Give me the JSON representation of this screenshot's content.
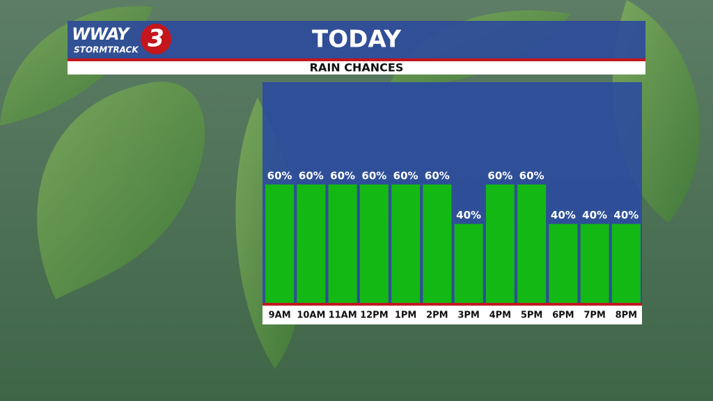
{
  "brand": {
    "name": "WWAY",
    "number": "3",
    "tagline": "STORMTRACK"
  },
  "chart_data": {
    "type": "bar",
    "title": "TODAY",
    "subtitle": "RAIN CHANCES",
    "categories": [
      "9AM",
      "10AM",
      "11AM",
      "12PM",
      "1PM",
      "2PM",
      "3PM",
      "4PM",
      "5PM",
      "6PM",
      "7PM",
      "8PM"
    ],
    "values": [
      60,
      60,
      60,
      60,
      60,
      60,
      40,
      60,
      60,
      40,
      40,
      40
    ],
    "value_labels": [
      "60%",
      "60%",
      "60%",
      "60%",
      "60%",
      "60%",
      "40%",
      "60%",
      "60%",
      "40%",
      "40%",
      "40%"
    ],
    "color": "#14b814"
  }
}
